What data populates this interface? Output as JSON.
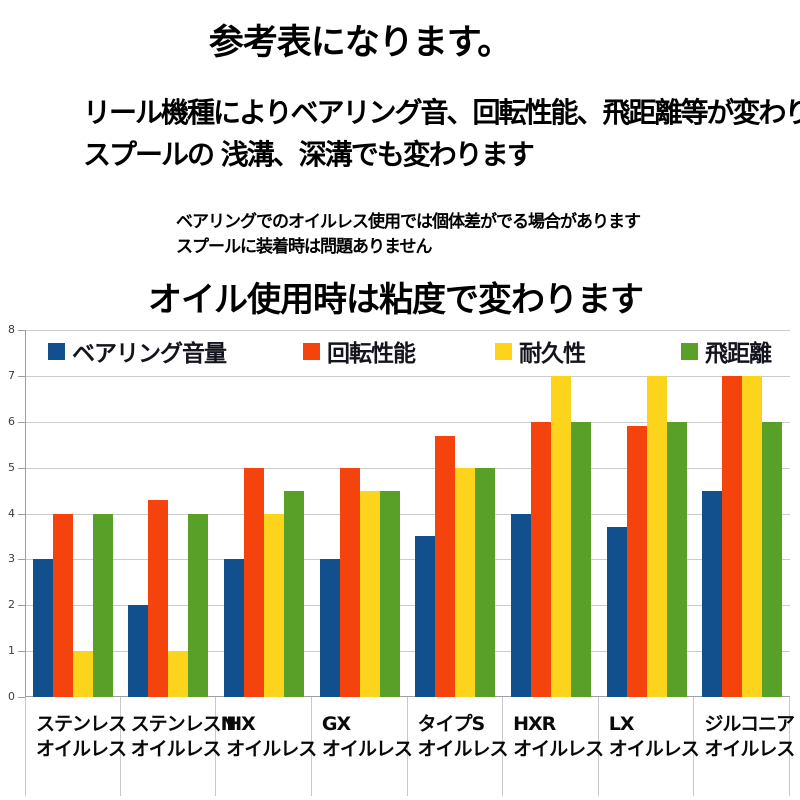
{
  "page": {
    "title": "参考表になります。",
    "intro_line1": "リール機種によりベアリング音、回転性能、飛距離等が変わります。",
    "intro_line2": "スプールの 浅溝、深溝でも変わります",
    "note_line1": "ベアリングでのオイルレス使用では個体差がでる場合があります",
    "note_line2": "スプールに装着時は問題ありません",
    "subtitle": "オイル使用時は粘度で変わります"
  },
  "chart_data": {
    "type": "bar",
    "title": "",
    "xlabel": "",
    "ylabel": "",
    "ylim": [
      0,
      8
    ],
    "ytick_step": 1,
    "grid": true,
    "legend_position": "top",
    "categories": [
      {
        "line1": "ステンレス",
        "line2": "オイルレス"
      },
      {
        "line1": "ステンレスN",
        "line2": "オイルレス"
      },
      {
        "line1": "HX",
        "line2": "オイルレス"
      },
      {
        "line1": "GX",
        "line2": "オイルレス"
      },
      {
        "line1": "タイプS",
        "line2": "オイルレス"
      },
      {
        "line1": "HXR",
        "line2": "オイルレス"
      },
      {
        "line1": "LX",
        "line2": "オイルレス"
      },
      {
        "line1": "ジルコニア",
        "line2": "オイルレス"
      }
    ],
    "series": [
      {
        "name": "ベアリング音量",
        "color": "#11508c",
        "values": [
          3,
          2,
          3,
          3,
          3.5,
          4,
          3.7,
          4.5
        ]
      },
      {
        "name": "回転性能",
        "color": "#f5430e",
        "values": [
          4,
          4.3,
          5,
          5,
          5.7,
          6,
          5.9,
          7
        ]
      },
      {
        "name": "耐久性",
        "color": "#fcd41c",
        "values": [
          1,
          1,
          4,
          4.5,
          5,
          7,
          7,
          7
        ]
      },
      {
        "name": "飛距離",
        "color": "#58a028",
        "values": [
          4,
          4,
          4.5,
          4.5,
          5,
          6,
          6,
          6
        ]
      }
    ]
  }
}
